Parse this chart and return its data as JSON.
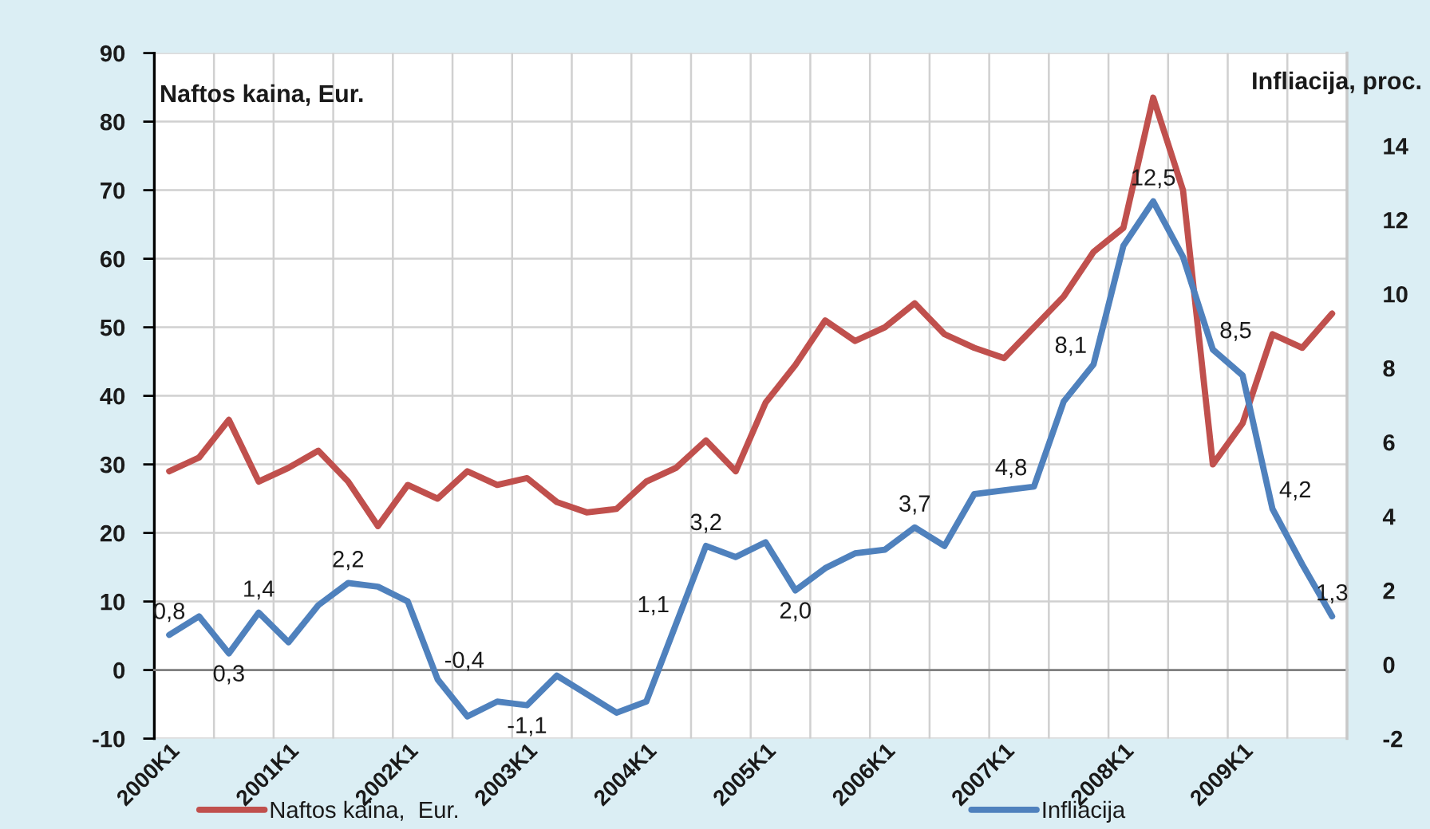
{
  "chart_data": {
    "type": "line",
    "categories": [
      "2000K1",
      null,
      null,
      null,
      "2001K1",
      null,
      null,
      null,
      "2002K1",
      null,
      null,
      null,
      "2003K1",
      null,
      null,
      null,
      "2004K1",
      null,
      null,
      null,
      "2005K1",
      null,
      null,
      null,
      "2006K1",
      null,
      null,
      null,
      "2007K1",
      null,
      null,
      null,
      "2008K1",
      null,
      null,
      null,
      "2009K1",
      null,
      null,
      null
    ],
    "ylabel": "Naftos kaina, Eur.",
    "y2label": "Infliacija, proc.",
    "ylim": [
      -10,
      90
    ],
    "yticks": [
      -10,
      0,
      10,
      20,
      30,
      40,
      50,
      60,
      70,
      80,
      90
    ],
    "y2lim": [
      -2,
      16.5
    ],
    "y2ticks": [
      -2,
      0,
      2,
      4,
      6,
      8,
      10,
      12,
      14
    ],
    "grid": true,
    "legend": "bottom",
    "series": [
      {
        "name": "Naftos kaina,  Eur.",
        "color": "#c0504d",
        "values": [
          29,
          31,
          36.5,
          27.5,
          29.5,
          32,
          27.5,
          21,
          27,
          25,
          29,
          27,
          28,
          24.5,
          23,
          23.5,
          27.5,
          29.5,
          33.5,
          29,
          39,
          44.5,
          51,
          48,
          50,
          53.5,
          49,
          47,
          45.5,
          50,
          54.5,
          61,
          64.5,
          83.5,
          70,
          30,
          36,
          49,
          47,
          52
        ]
      },
      {
        "name": "Infliacija",
        "color": "#4f81bd",
        "axis": "y2",
        "values": [
          0.8,
          1.3,
          0.3,
          1.4,
          0.6,
          1.6,
          2.2,
          2.1,
          1.7,
          -0.4,
          -1.4,
          -1.0,
          -1.1,
          -0.3,
          -0.8,
          -1.3,
          -1.0,
          1.1,
          3.2,
          2.9,
          3.3,
          2.0,
          2.6,
          3.0,
          3.1,
          3.7,
          3.2,
          4.6,
          4.7,
          4.8,
          7.1,
          8.1,
          11.3,
          12.5,
          11.0,
          8.5,
          7.8,
          4.2,
          2.7,
          1.3
        ],
        "value_labels": [
          "0,8",
          null,
          "0,3",
          "1,4",
          null,
          null,
          "2,2",
          null,
          null,
          "-0,4",
          null,
          null,
          "-1,1",
          null,
          null,
          null,
          null,
          "1,1",
          "3,2",
          null,
          null,
          "2,0",
          null,
          null,
          null,
          "3,7",
          null,
          null,
          null,
          "4,8",
          null,
          "8,1",
          null,
          "12,5",
          null,
          "8,5",
          null,
          "4,2",
          null,
          "1,3"
        ]
      }
    ]
  }
}
